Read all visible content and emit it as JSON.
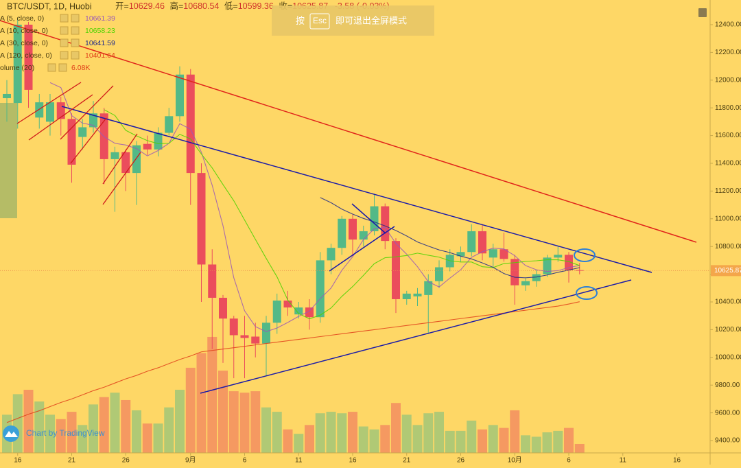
{
  "chart_data": {
    "type": "candlestick",
    "title": "BTC/USDT, 1D, Huobi",
    "header": {
      "open_label": "开=",
      "high_label": "高=",
      "low_label": "低=",
      "close_label": "收=",
      "change": "-3.58 (-0.03%)"
    },
    "overlay": {
      "key1": "按",
      "key2": "Esc",
      "text": "即可退出全屏模式"
    },
    "watermark": "Chart by TradingView",
    "up_color": "#53b987",
    "down_color": "#eb4d5c",
    "categories": [
      null,
      "16",
      null,
      null,
      null,
      null,
      "21",
      null,
      null,
      null,
      null,
      "26",
      null,
      null,
      null,
      null,
      null,
      "9月",
      null,
      null,
      null,
      null,
      "6",
      null,
      null,
      null,
      null,
      "11",
      null,
      null,
      null,
      null,
      "16",
      null,
      null,
      null,
      null,
      "21",
      null,
      null,
      null,
      null,
      "26",
      null,
      null,
      null,
      null,
      "10月",
      null,
      null,
      null,
      null,
      "6",
      null,
      null,
      null,
      null,
      "11",
      null,
      null,
      null,
      null,
      "16"
    ],
    "open": [
      11870,
      11835,
      12400,
      11730,
      11700,
      11840,
      11720,
      11590,
      11660,
      11760,
      11430,
      11480,
      11330,
      11540,
      11500,
      11620,
      11740,
      12040,
      11330,
      10670,
      10430,
      10280,
      10160,
      10150,
      10100,
      10250,
      10410,
      10310,
      10360,
      10290,
      10700,
      10790,
      11000,
      10850,
      10910,
      11090,
      10840,
      10420,
      10440,
      10450,
      10550,
      10650,
      10730,
      10760,
      10910,
      10720,
      10780,
      10710,
      10520,
      10550,
      10600,
      10720,
      10740,
      10629.46,
      null,
      null,
      null,
      null,
      null,
      null,
      null,
      null,
      null
    ],
    "high": [
      12000,
      12450,
      12420,
      11900,
      11900,
      11880,
      11760,
      11720,
      11850,
      11800,
      11520,
      11500,
      11560,
      11600,
      11660,
      11800,
      12100,
      12080,
      11400,
      10780,
      10450,
      10300,
      10300,
      10250,
      10300,
      10460,
      10480,
      10400,
      10420,
      10760,
      10820,
      11020,
      11030,
      10950,
      11180,
      11110,
      10860,
      10480,
      10500,
      10600,
      10700,
      10780,
      10800,
      10960,
      10960,
      10820,
      10900,
      10740,
      10570,
      10630,
      10740,
      10800,
      10760,
      10680.54,
      null,
      null,
      null,
      null,
      null,
      null,
      null,
      null,
      null
    ],
    "low": [
      11700,
      11650,
      11800,
      11650,
      11600,
      11600,
      11260,
      11500,
      11620,
      11250,
      11050,
      11200,
      11100,
      11460,
      11450,
      11600,
      11700,
      11100,
      10400,
      10060,
      9960,
      9850,
      9850,
      10000,
      9870,
      10170,
      10300,
      10280,
      10200,
      10250,
      10600,
      10740,
      10730,
      10800,
      10880,
      10780,
      10320,
      10380,
      10370,
      10170,
      10500,
      10620,
      10690,
      10730,
      10700,
      10650,
      10690,
      10380,
      10480,
      10510,
      10580,
      10690,
      10540,
      10599.36,
      null,
      null,
      null,
      null,
      null,
      null,
      null,
      null,
      null
    ],
    "close": [
      11900,
      12400,
      11930,
      11840,
      11840,
      11720,
      11390,
      11660,
      11760,
      11430,
      11480,
      11330,
      11530,
      11500,
      11620,
      11740,
      12040,
      11330,
      10670,
      10430,
      10280,
      10160,
      10140,
      10100,
      10250,
      10410,
      10360,
      10360,
      10290,
      10700,
      10790,
      11000,
      10850,
      10910,
      11090,
      10840,
      10420,
      10460,
      10460,
      10550,
      10650,
      10740,
      10760,
      10910,
      10750,
      10780,
      10710,
      10520,
      10550,
      10600,
      10720,
      10740,
      10630,
      10625.87,
      null,
      null,
      null,
      null,
      null,
      null,
      null,
      null,
      null
    ],
    "volume": {
      "name": "olume (20)",
      "last_label": "6.08K",
      "values": [
        26,
        40,
        43,
        35,
        26,
        23,
        28,
        19,
        33,
        38,
        41,
        36,
        29,
        20,
        20,
        31,
        43,
        58,
        68,
        79,
        56,
        42,
        41,
        42,
        31,
        28,
        16,
        13,
        19,
        27,
        28,
        27,
        28,
        18,
        16,
        19,
        34,
        26,
        19,
        27,
        28,
        15,
        15,
        22,
        16,
        19,
        17,
        29,
        12,
        11,
        14,
        15,
        17,
        6.08,
        null,
        null,
        null,
        null,
        null,
        null,
        null,
        null,
        null
      ]
    },
    "series": [
      {
        "name": "A (5, close, 0)",
        "period": 5,
        "value": 10661.39,
        "color": "#9b59b6"
      },
      {
        "name": "A (10, close, 0)",
        "period": 10,
        "value": 10658.23,
        "color": "#4cd400"
      },
      {
        "name": "A (30, close, 0)",
        "period": 30,
        "value": 10641.59,
        "color": "#1f2a8a"
      },
      {
        "name": "A (120, close, 0)",
        "value": 10401.64,
        "color": "#e0401a",
        "values": [
          9530,
          9560,
          9590,
          9615,
          9645,
          9675,
          9700,
          9730,
          9760,
          9785,
          9815,
          9845,
          9870,
          9900,
          9925,
          9955,
          9985,
          10010,
          10040,
          10050,
          10060,
          10070,
          10080,
          10090,
          10100,
          10110,
          10120,
          10130,
          10140,
          10150,
          10160,
          10170,
          10180,
          10190,
          10200,
          10210,
          10220,
          10230,
          10240,
          10250,
          10260,
          10270,
          10280,
          10290,
          10300,
          10310,
          10320,
          10330,
          10340,
          10350,
          10360,
          10370,
          10385,
          10401.64,
          null,
          null,
          null,
          null,
          null,
          null,
          null,
          null,
          null
        ]
      }
    ],
    "ylim": [
      9311,
      12578
    ],
    "yticks": [
      {
        "value": 9400,
        "label": "9400.00"
      },
      {
        "value": 9600,
        "label": "9600.00"
      },
      {
        "value": 9800,
        "label": "9800.00"
      },
      {
        "value": 10000,
        "label": "10000.00"
      },
      {
        "value": 10200,
        "label": "10200.00"
      },
      {
        "value": 10400,
        "label": "10400.00"
      },
      {
        "value": 10600,
        "label": "10600.00"
      },
      {
        "value": 10800,
        "label": "10800.00"
      },
      {
        "value": 11000,
        "label": "11000.00"
      },
      {
        "value": 11200,
        "label": "11200.00"
      },
      {
        "value": 11400,
        "label": "11400.00"
      },
      {
        "value": 11600,
        "label": "11600.00"
      },
      {
        "value": 11800,
        "label": "11800.00"
      },
      {
        "value": 12000,
        "label": "12000.00"
      },
      {
        "value": 12200,
        "label": "12200.00"
      },
      {
        "value": 12400,
        "label": "12400.00"
      }
    ]
  }
}
